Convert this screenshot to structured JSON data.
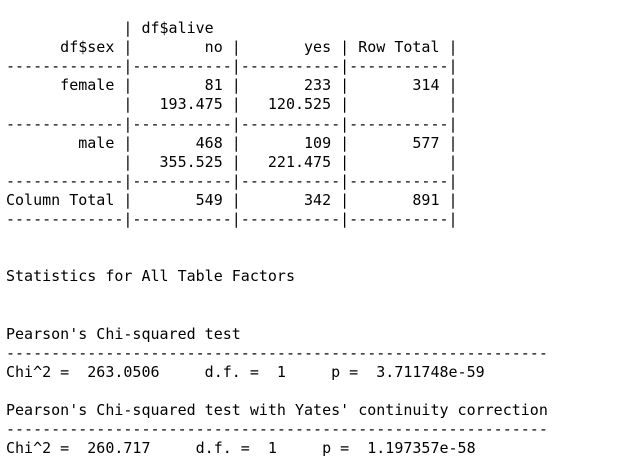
{
  "console": {
    "lines": [
      "",
      "             | df$alive",
      "      df$sex |        no |       yes | Row Total |",
      "-------------|-----------|-----------|-----------|",
      "      female |        81 |       233 |       314 |",
      "             |   193.475 |   120.525 |           |",
      "-------------|-----------|-----------|-----------|",
      "        male |       468 |       109 |       577 |",
      "             |   355.525 |   221.475 |           |",
      "-------------|-----------|-----------|-----------|",
      "Column Total |       549 |       342 |       891 |",
      "-------------|-----------|-----------|-----------|",
      "",
      "",
      "Statistics for All Table Factors",
      "",
      "",
      "Pearson's Chi-squared test",
      "------------------------------------------------------------",
      "Chi^2 =  263.0506     d.f. =  1     p =  3.711748e-59",
      "",
      "Pearson's Chi-squared test with Yates' continuity correction",
      "------------------------------------------------------------",
      "Chi^2 =  260.717     d.f. =  1     p =  1.197357e-58"
    ]
  }
}
